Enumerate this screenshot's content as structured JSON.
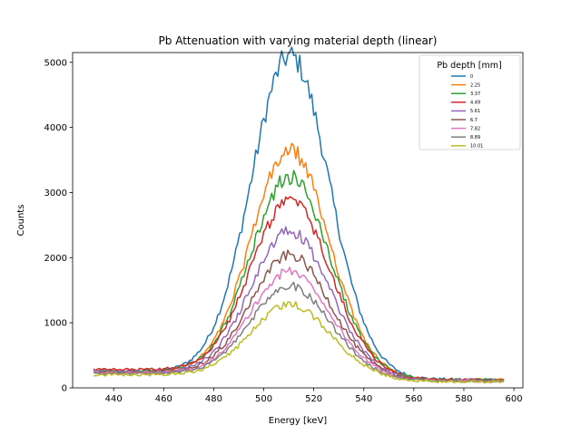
{
  "chart_data": {
    "type": "line",
    "title": "Pb Attenuation with varying material depth (linear)",
    "xlabel": "Energy [keV]",
    "ylabel": "Counts",
    "xlim": [
      423.6,
      603.6
    ],
    "ylim": [
      0,
      5150
    ],
    "xticks": [
      440,
      460,
      480,
      500,
      520,
      540,
      560,
      580,
      600
    ],
    "yticks": [
      0,
      1000,
      2000,
      3000,
      4000,
      5000
    ],
    "grid": false,
    "legend": {
      "title": "Pb depth [mm]",
      "position": "top-right"
    },
    "x_range": [
      432,
      596
    ],
    "peak_center": 510.5,
    "series": [
      {
        "name": "0",
        "color": "#1f77b4",
        "peak": 4850,
        "sigma": 15.5,
        "baseline_low": 250,
        "baseline_high": 130
      },
      {
        "name": "2.25",
        "color": "#ff7f0e",
        "peak": 3400,
        "sigma": 15.5,
        "baseline_low": 240,
        "baseline_high": 120
      },
      {
        "name": "3.37",
        "color": "#2ca02c",
        "peak": 2980,
        "sigma": 15.5,
        "baseline_low": 260,
        "baseline_high": 125
      },
      {
        "name": "4.49",
        "color": "#d62728",
        "peak": 2600,
        "sigma": 15.5,
        "baseline_low": 280,
        "baseline_high": 120
      },
      {
        "name": "5.61",
        "color": "#9467bd",
        "peak": 2150,
        "sigma": 15.5,
        "baseline_low": 250,
        "baseline_high": 115
      },
      {
        "name": "6.7",
        "color": "#8c564b",
        "peak": 1800,
        "sigma": 15.5,
        "baseline_low": 240,
        "baseline_high": 110
      },
      {
        "name": "7.82",
        "color": "#e377c2",
        "peak": 1560,
        "sigma": 15.5,
        "baseline_low": 230,
        "baseline_high": 105
      },
      {
        "name": "8.89",
        "color": "#7f7f7f",
        "peak": 1350,
        "sigma": 15.5,
        "baseline_low": 220,
        "baseline_high": 100
      },
      {
        "name": "10.01",
        "color": "#bcbd22",
        "peak": 1080,
        "sigma": 15.5,
        "baseline_low": 200,
        "baseline_high": 95
      }
    ]
  }
}
